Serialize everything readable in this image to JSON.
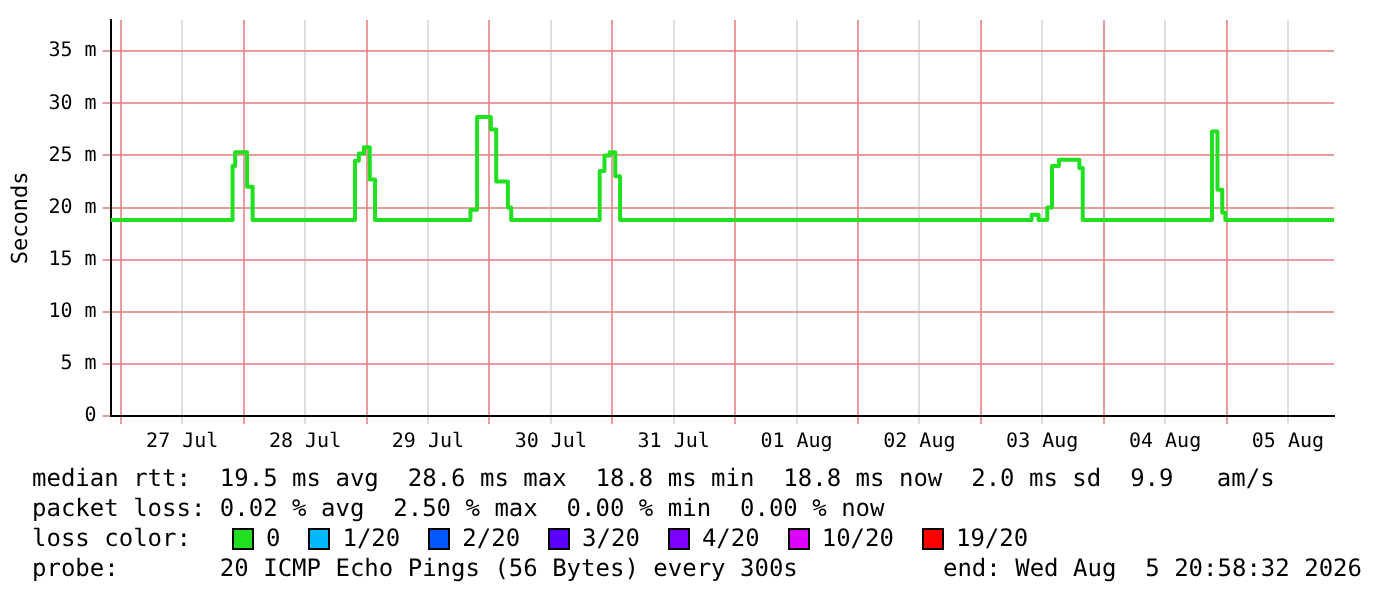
{
  "chart_data": {
    "type": "step",
    "ylabel": "Seconds",
    "legend_title": "loss color:",
    "legend": "bottom",
    "grid": true,
    "xlim": [
      "2026-07-26T22:00",
      "2026-08-05T21:00"
    ],
    "xticks": [
      {
        "value": "2026-07-27T00:00",
        "label": null
      },
      {
        "value": "2026-07-27T12:00",
        "label": "27 Jul"
      },
      {
        "value": "2026-07-28T00:00",
        "label": null
      },
      {
        "value": "2026-07-28T12:00",
        "label": "28 Jul"
      },
      {
        "value": "2026-07-29T00:00",
        "label": null
      },
      {
        "value": "2026-07-29T12:00",
        "label": "29 Jul"
      },
      {
        "value": "2026-07-30T00:00",
        "label": null
      },
      {
        "value": "2026-07-30T12:00",
        "label": "30 Jul"
      },
      {
        "value": "2026-07-31T00:00",
        "label": null
      },
      {
        "value": "2026-07-31T12:00",
        "label": "31 Jul"
      },
      {
        "value": "2026-08-01T00:00",
        "label": null
      },
      {
        "value": "2026-08-01T12:00",
        "label": "01 Aug"
      },
      {
        "value": "2026-08-02T00:00",
        "label": null
      },
      {
        "value": "2026-08-02T12:00",
        "label": "02 Aug"
      },
      {
        "value": "2026-08-03T00:00",
        "label": null
      },
      {
        "value": "2026-08-03T12:00",
        "label": "03 Aug"
      },
      {
        "value": "2026-08-04T00:00",
        "label": null
      },
      {
        "value": "2026-08-04T12:00",
        "label": "04 Aug"
      },
      {
        "value": "2026-08-05T00:00",
        "label": null
      },
      {
        "value": "2026-08-05T12:00",
        "label": "05 Aug"
      }
    ],
    "ylim": [
      0,
      38
    ],
    "yticks": [
      0,
      {
        "value": 5,
        "label": "5 m"
      },
      {
        "value": 10,
        "label": "10 m"
      },
      {
        "value": 15,
        "label": "15 m"
      },
      {
        "value": 20,
        "label": "20 m"
      },
      {
        "value": 25,
        "label": "25 m"
      },
      {
        "value": 30,
        "label": "30 m"
      },
      {
        "value": 35,
        "label": "35 m"
      }
    ],
    "series": [
      {
        "name": "0",
        "color": "#20e020",
        "x": [
          "2026-07-26T22:00",
          "2026-07-27T21:50",
          "2026-07-27T22:20",
          "2026-07-28T00:40",
          "2026-07-28T01:45",
          "2026-07-28T21:45",
          "2026-07-28T22:30",
          "2026-07-28T23:30",
          "2026-07-29T00:38",
          "2026-07-29T01:40",
          "2026-07-29T20:18",
          "2026-07-29T21:36",
          "2026-07-30T00:17",
          "2026-07-30T01:20",
          "2026-07-30T03:37",
          "2026-07-30T04:16",
          "2026-07-30T21:33",
          "2026-07-30T22:29",
          "2026-07-30T23:31",
          "2026-07-31T00:36",
          "2026-07-31T01:32",
          "2026-08-03T09:56",
          "2026-08-03T11:17",
          "2026-08-03T12:59",
          "2026-08-03T13:55",
          "2026-08-03T15:16",
          "2026-08-03T19:15",
          "2026-08-03T19:55",
          "2026-08-04T21:10",
          "2026-08-04T22:14",
          "2026-08-04T23:10",
          "2026-08-04T23:47",
          "2026-08-05T21:00"
        ],
        "values": [
          18.8,
          24.0,
          25.3,
          22.0,
          18.8,
          24.5,
          25.2,
          25.8,
          22.7,
          18.8,
          19.8,
          28.7,
          27.5,
          22.5,
          20.0,
          18.8,
          23.5,
          25.0,
          25.3,
          23.0,
          18.8,
          19.3,
          18.8,
          20.0,
          24.0,
          24.6,
          23.8,
          18.8,
          27.3,
          21.7,
          19.5,
          18.8,
          18.8
        ]
      },
      {
        "name": "1/20",
        "color": "#00b8ff"
      },
      {
        "name": "2/20",
        "color": "#0059ff"
      },
      {
        "name": "3/20",
        "color": "#5e00ff"
      },
      {
        "name": "4/20",
        "color": "#7e00ff"
      },
      {
        "name": "10/20",
        "color": "#dd00ff"
      },
      {
        "name": "19/20",
        "color": "#ff0000"
      }
    ],
    "annotations": [
      "median rtt:  19.5 ms avg  28.6 ms max  18.8 ms min  18.8 ms now  2.0 ms sd  9.9   am/s",
      "packet loss: 0.02 % avg  2.50 % max  0.00 % min  0.00 % now",
      "probe:       20 ICMP Echo Pings (56 Bytes) every 300s",
      "end: Wed Aug  5 20:58:32 2026"
    ]
  }
}
